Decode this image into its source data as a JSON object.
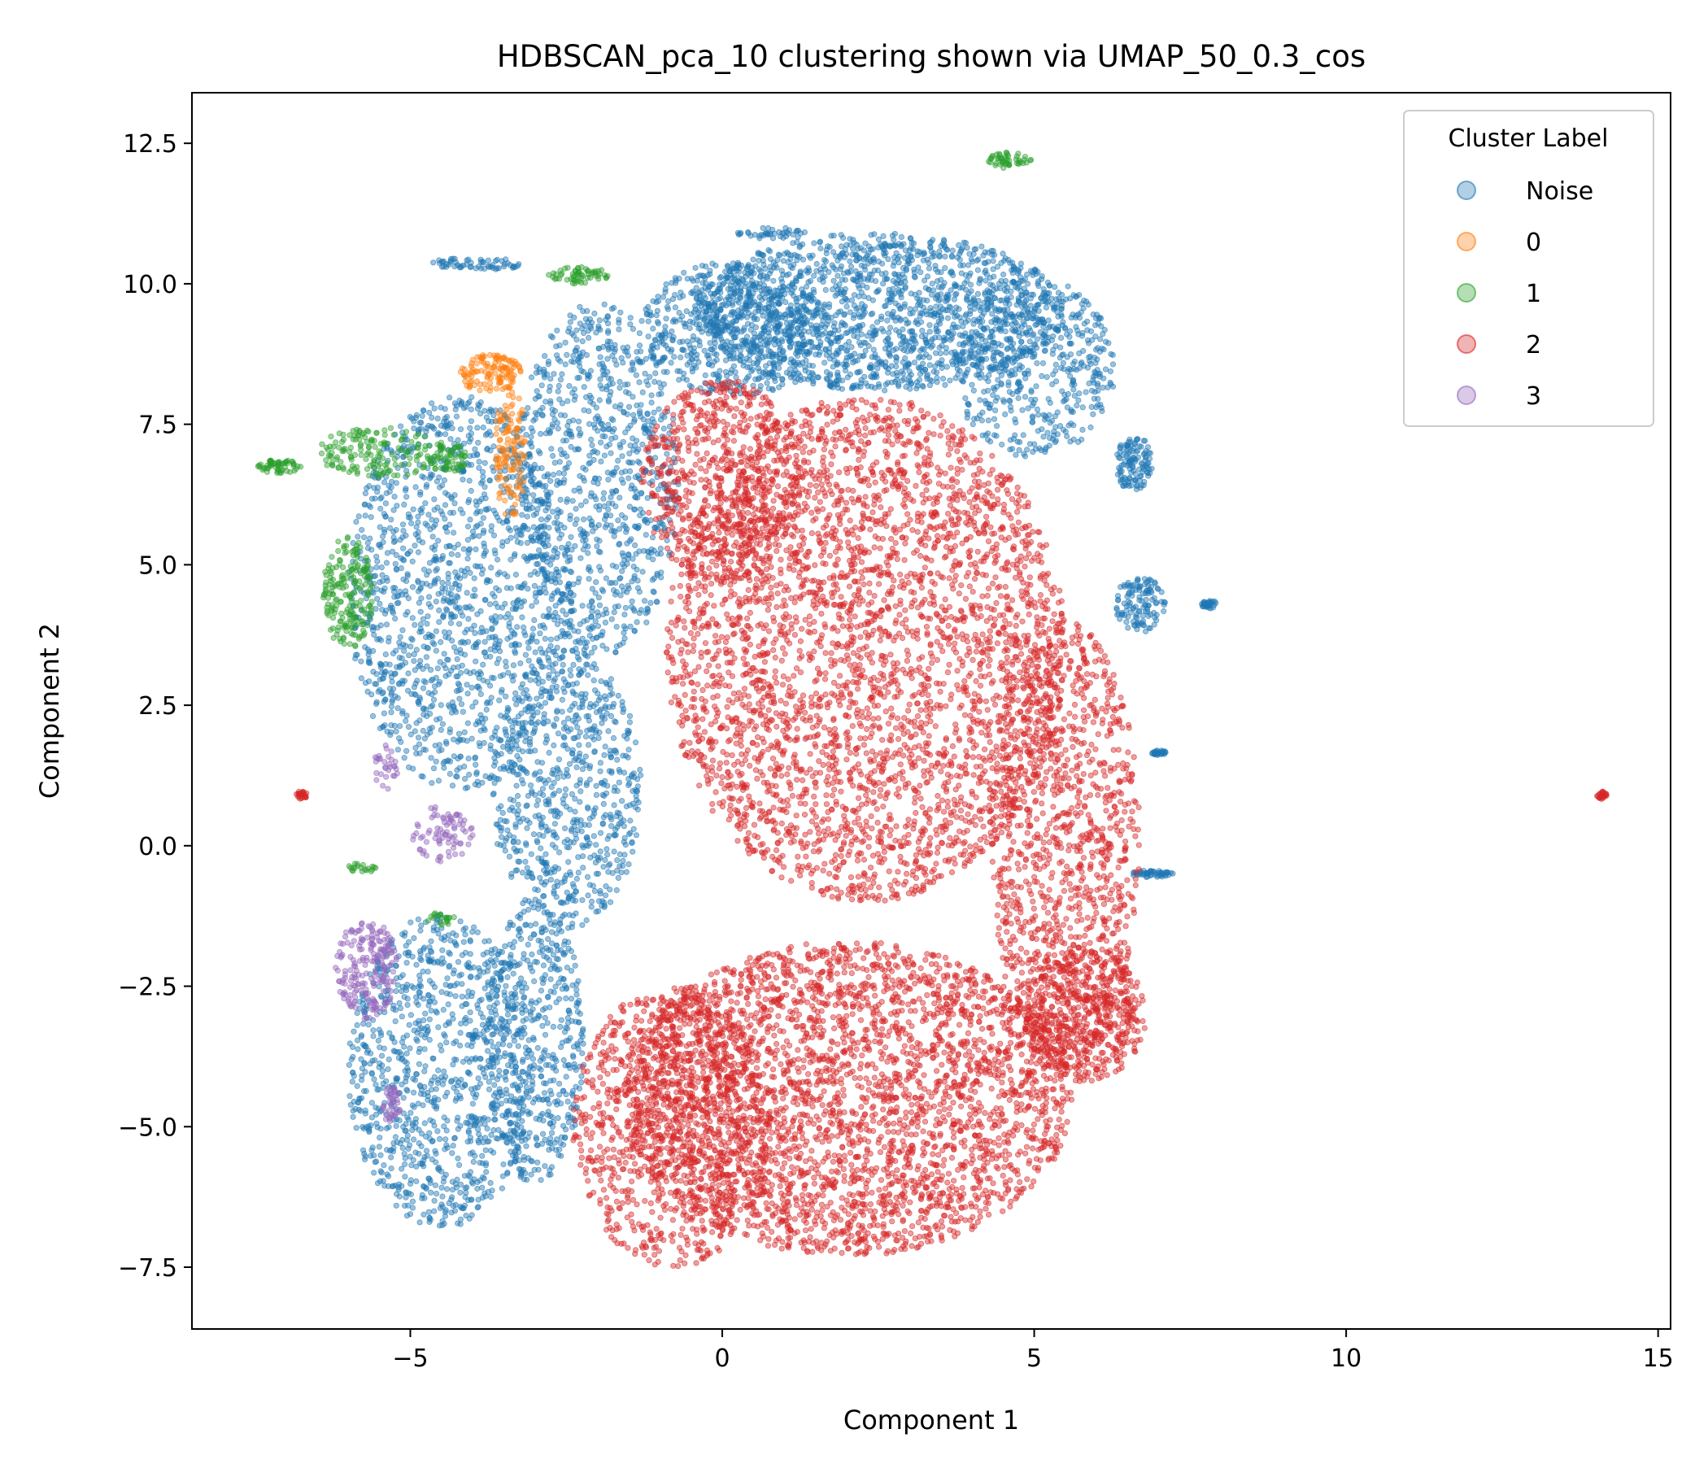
{
  "chart_data": {
    "type": "scatter",
    "title": "HDBSCAN_pca_10 clustering shown via UMAP_50_0.3_cos",
    "xlabel": "Component 1",
    "ylabel": "Component 2",
    "xlim": [
      -8.5,
      15.2
    ],
    "ylim": [
      -8.6,
      13.4
    ],
    "xticks": [
      -5,
      0,
      5,
      10,
      15
    ],
    "xtick_labels": [
      "−5",
      "0",
      "5",
      "10",
      "15"
    ],
    "yticks": [
      -7.5,
      -5.0,
      -2.5,
      0.0,
      2.5,
      5.0,
      7.5,
      10.0,
      12.5
    ],
    "ytick_labels": [
      "−7.5",
      "−5.0",
      "−2.5",
      "0.0",
      "2.5",
      "5.0",
      "7.5",
      "10.0",
      "12.5"
    ],
    "grid": false,
    "legend": {
      "title": "Cluster Label",
      "placement": "top-right"
    },
    "series": [
      {
        "name": "Noise",
        "color": "#1f77b4",
        "regions": [
          {
            "cx": -4.2,
            "cy": 4.5,
            "rx": 1.8,
            "ry": 3.5,
            "n": 1400
          },
          {
            "cx": -4.5,
            "cy": -4.0,
            "rx": 1.5,
            "ry": 2.8,
            "n": 1000
          },
          {
            "cx": -2.0,
            "cy": 6.5,
            "rx": 1.3,
            "ry": 3.2,
            "n": 900
          },
          {
            "cx": -2.5,
            "cy": 1.0,
            "rx": 1.2,
            "ry": 2.5,
            "n": 700
          },
          {
            "cx": 2.5,
            "cy": 9.5,
            "rx": 3.0,
            "ry": 1.4,
            "n": 1600
          },
          {
            "cx": 5.0,
            "cy": 8.5,
            "rx": 1.3,
            "ry": 1.6,
            "n": 500
          },
          {
            "cx": 0.2,
            "cy": 9.2,
            "rx": 1.5,
            "ry": 1.2,
            "n": 600
          },
          {
            "cx": -3.0,
            "cy": -3.5,
            "rx": 0.8,
            "ry": 2.5,
            "n": 500
          },
          {
            "cx": 6.6,
            "cy": 6.8,
            "rx": 0.3,
            "ry": 0.5,
            "n": 120
          },
          {
            "cx": 6.7,
            "cy": 4.3,
            "rx": 0.4,
            "ry": 0.5,
            "n": 120
          },
          {
            "cx": 7.8,
            "cy": 4.3,
            "rx": 0.12,
            "ry": 0.08,
            "n": 30
          },
          {
            "cx": 7.0,
            "cy": 1.65,
            "rx": 0.12,
            "ry": 0.05,
            "n": 30
          },
          {
            "cx": 6.9,
            "cy": -0.5,
            "rx": 0.35,
            "ry": 0.06,
            "n": 50
          },
          {
            "cx": -4.0,
            "cy": 10.35,
            "rx": 0.8,
            "ry": 0.12,
            "n": 60
          },
          {
            "cx": 0.8,
            "cy": 10.9,
            "rx": 0.6,
            "ry": 0.1,
            "n": 40
          }
        ]
      },
      {
        "name": "0",
        "color": "#ff7f0e",
        "regions": [
          {
            "cx": -3.7,
            "cy": 8.4,
            "rx": 0.5,
            "ry": 0.35,
            "n": 120
          },
          {
            "cx": -3.4,
            "cy": 7.0,
            "rx": 0.25,
            "ry": 1.2,
            "n": 120
          }
        ]
      },
      {
        "name": "1",
        "color": "#2ca02c",
        "regions": [
          {
            "cx": 4.6,
            "cy": 12.2,
            "rx": 0.35,
            "ry": 0.15,
            "n": 50
          },
          {
            "cx": -2.3,
            "cy": 10.15,
            "rx": 0.5,
            "ry": 0.15,
            "n": 60
          },
          {
            "cx": -6.0,
            "cy": 4.5,
            "rx": 0.4,
            "ry": 1.0,
            "n": 200
          },
          {
            "cx": -5.5,
            "cy": 7.0,
            "rx": 1.0,
            "ry": 0.45,
            "n": 160
          },
          {
            "cx": -7.1,
            "cy": 6.75,
            "rx": 0.35,
            "ry": 0.12,
            "n": 60
          },
          {
            "cx": -4.4,
            "cy": 6.9,
            "rx": 0.3,
            "ry": 0.3,
            "n": 60
          },
          {
            "cx": -5.8,
            "cy": -0.4,
            "rx": 0.25,
            "ry": 0.1,
            "n": 20
          },
          {
            "cx": -4.5,
            "cy": -1.3,
            "rx": 0.25,
            "ry": 0.12,
            "n": 20
          }
        ]
      },
      {
        "name": "2",
        "color": "#d62728",
        "regions": [
          {
            "cx": 2.3,
            "cy": 3.5,
            "rx": 3.2,
            "ry": 4.5,
            "n": 3500
          },
          {
            "cx": 2.0,
            "cy": -4.5,
            "rx": 3.6,
            "ry": 2.8,
            "n": 3200
          },
          {
            "cx": 5.5,
            "cy": 0.0,
            "rx": 1.2,
            "ry": 4.0,
            "n": 1200
          },
          {
            "cx": -0.8,
            "cy": -5.0,
            "rx": 1.6,
            "ry": 2.5,
            "n": 1000
          },
          {
            "cx": 0.0,
            "cy": 6.5,
            "rx": 1.3,
            "ry": 1.8,
            "n": 700
          },
          {
            "cx": 5.8,
            "cy": -3.0,
            "rx": 1.0,
            "ry": 1.2,
            "n": 500
          },
          {
            "cx": -6.75,
            "cy": 0.9,
            "rx": 0.1,
            "ry": 0.07,
            "n": 25
          },
          {
            "cx": 14.1,
            "cy": 0.9,
            "rx": 0.08,
            "ry": 0.07,
            "n": 25
          }
        ]
      },
      {
        "name": "3",
        "color": "#9467bd",
        "regions": [
          {
            "cx": -5.7,
            "cy": -2.2,
            "rx": 0.5,
            "ry": 0.9,
            "n": 200
          },
          {
            "cx": -4.5,
            "cy": 0.2,
            "rx": 0.5,
            "ry": 0.5,
            "n": 80
          },
          {
            "cx": -5.3,
            "cy": -4.6,
            "rx": 0.15,
            "ry": 0.35,
            "n": 40
          },
          {
            "cx": -5.4,
            "cy": 1.4,
            "rx": 0.2,
            "ry": 0.4,
            "n": 30
          }
        ]
      }
    ]
  }
}
